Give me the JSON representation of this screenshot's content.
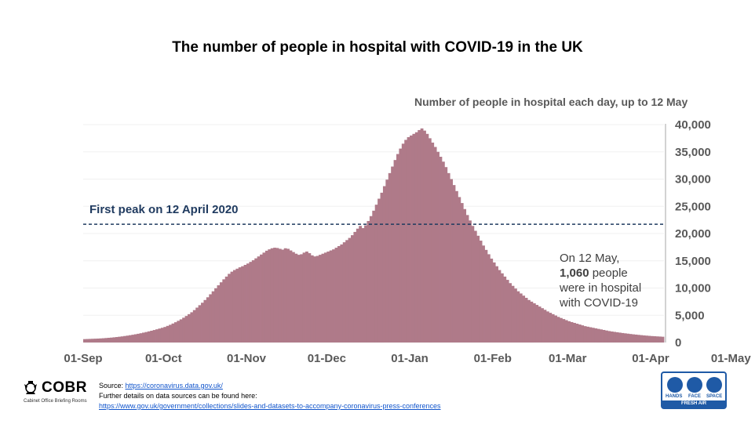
{
  "chart_data": {
    "type": "area",
    "title": "The number of people in hospital with COVID-19 in the UK",
    "subtitle": "Number of people in hospital each day, up to 12 May",
    "x_ticks": [
      "01-Sep",
      "01-Oct",
      "01-Nov",
      "01-Dec",
      "01-Jan",
      "01-Feb",
      "01-Mar",
      "01-Apr",
      "01-May"
    ],
    "y_ticks": [
      "0",
      "5,000",
      "10,000",
      "15,000",
      "20,000",
      "25,000",
      "30,000",
      "35,000",
      "40,000"
    ],
    "ylim": [
      0,
      40000
    ],
    "reference_line": {
      "label": "First peak on 12 April 2020",
      "value": 21700
    },
    "annotation": {
      "line1": "On 12 May,",
      "bold": "1,060",
      "line2_rest": " people",
      "line3": "were in hospital",
      "line4": "with COVID-19"
    },
    "series": [
      {
        "fill": "#af7a89",
        "start_date": "2020-09-01",
        "values": [
          620,
          640,
          660,
          680,
          700,
          720,
          750,
          780,
          820,
          860,
          900,
          950,
          1000,
          1060,
          1120,
          1190,
          1260,
          1340,
          1420,
          1510,
          1600,
          1700,
          1810,
          1920,
          2040,
          2160,
          2290,
          2420,
          2560,
          2700,
          2850,
          3050,
          3250,
          3480,
          3720,
          3980,
          4250,
          4550,
          4870,
          5200,
          5550,
          5950,
          6400,
          6850,
          7300,
          7800,
          8300,
          8850,
          9400,
          9950,
          10500,
          11050,
          11600,
          12100,
          12600,
          13000,
          13300,
          13550,
          13800,
          14000,
          14250,
          14500,
          14800,
          15100,
          15450,
          15800,
          16150,
          16500,
          16850,
          17100,
          17300,
          17400,
          17350,
          17200,
          17050,
          17300,
          17200,
          16900,
          16600,
          16300,
          16100,
          16200,
          16500,
          16700,
          16400,
          16000,
          15800,
          15900,
          16100,
          16300,
          16500,
          16700,
          16900,
          17100,
          17400,
          17700,
          18000,
          18400,
          18800,
          19200,
          19700,
          20300,
          20900,
          21400,
          21000,
          21500,
          22300,
          23200,
          24200,
          25300,
          26400,
          27500,
          28700,
          29900,
          31100,
          32300,
          33500,
          34600,
          35600,
          36500,
          37200,
          37700,
          38000,
          38300,
          38600,
          39000,
          39300,
          38900,
          38300,
          37500,
          36700,
          35900,
          35000,
          34100,
          33200,
          32200,
          31100,
          30000,
          28900,
          27800,
          26700,
          25600,
          24500,
          23400,
          22400,
          21400,
          20500,
          19600,
          18700,
          17800,
          17000,
          16200,
          15400,
          14700,
          14000,
          13300,
          12700,
          12100,
          11500,
          10900,
          10400,
          9900,
          9400,
          9000,
          8600,
          8200,
          7800,
          7500,
          7200,
          6900,
          6600,
          6300,
          6000,
          5700,
          5450,
          5200,
          4950,
          4700,
          4500,
          4300,
          4100,
          3900,
          3750,
          3600,
          3450,
          3300,
          3150,
          3000,
          2900,
          2800,
          2700,
          2600,
          2500,
          2400,
          2300,
          2200,
          2100,
          2020,
          1950,
          1880,
          1810,
          1740,
          1680,
          1620,
          1560,
          1500,
          1450,
          1400,
          1350,
          1300,
          1260,
          1220,
          1180,
          1150,
          1120,
          1090,
          1060
        ]
      }
    ]
  },
  "source": {
    "label": "Source: ",
    "url": "https://coronavirus.data.gov.uk/",
    "further": "Further details on data sources can be found here:",
    "further_url": "https://www.gov.uk/government/collections/slides-and-datasets-to-accompany-coronavirus-press-conferences"
  },
  "logo": {
    "name": "COBR",
    "sub": "Cabinet Office Briefing Rooms"
  },
  "badge": {
    "hands": "HANDS",
    "face": "FACE",
    "space": "SPACE",
    "bar": "FRESH AIR"
  }
}
